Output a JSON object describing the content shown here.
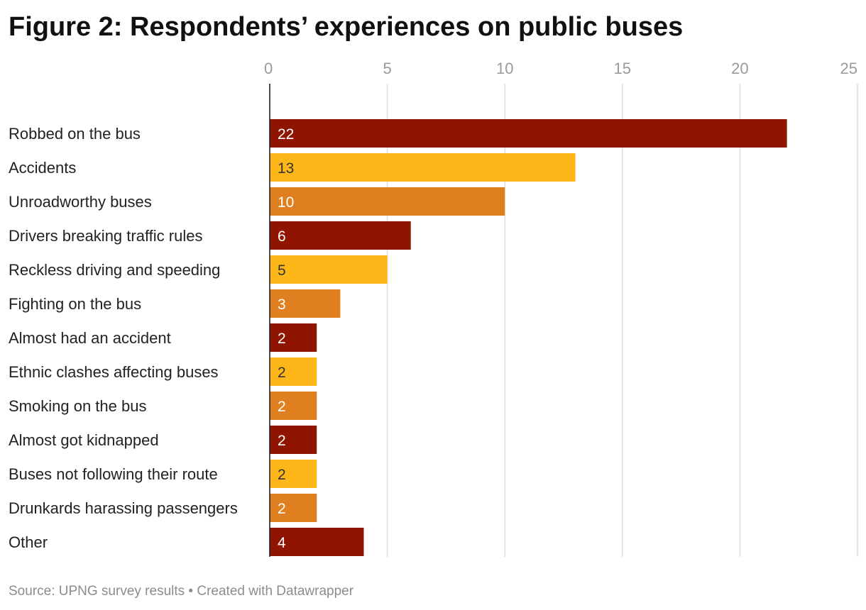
{
  "title": "Figure 2: Respondents’ experiences on public buses",
  "footer": {
    "source": "Source: UPNG survey results",
    "separator": "•",
    "credit": "Created with Datawrapper"
  },
  "colors": {
    "dark_red": "#8F1402",
    "yellow": "#FDB719",
    "orange": "#E07F20",
    "grid": "#dddddd",
    "axis": "#222222"
  },
  "chart_data": {
    "type": "bar",
    "orientation": "horizontal",
    "title": "Figure 2: Respondents’ experiences on public buses",
    "xlabel": "",
    "ylabel": "",
    "xlim": [
      0,
      25
    ],
    "xticks": [
      0,
      5,
      10,
      15,
      20,
      25
    ],
    "grid": true,
    "categories": [
      "Robbed on the bus",
      "Accidents",
      "Unroadworthy buses",
      "Drivers breaking traffic rules",
      "Reckless driving and speeding",
      "Fighting on the bus",
      "Almost had an accident",
      "Ethnic clashes affecting buses",
      "Smoking on the bus",
      "Almost got kidnapped",
      "Buses not following their route",
      "Drunkards harassing passengers",
      "Other"
    ],
    "values": [
      22,
      13,
      10,
      6,
      5,
      3,
      2,
      2,
      2,
      2,
      2,
      2,
      4
    ],
    "bar_colors": [
      "#8F1402",
      "#FDB719",
      "#E07F20",
      "#8F1402",
      "#FDB719",
      "#E07F20",
      "#8F1402",
      "#FDB719",
      "#E07F20",
      "#8F1402",
      "#FDB719",
      "#E07F20",
      "#8F1402"
    ],
    "label_colors": [
      "#ffffff",
      "#333333",
      "#ffffff",
      "#ffffff",
      "#333333",
      "#ffffff",
      "#ffffff",
      "#333333",
      "#ffffff",
      "#ffffff",
      "#333333",
      "#ffffff",
      "#ffffff"
    ]
  }
}
